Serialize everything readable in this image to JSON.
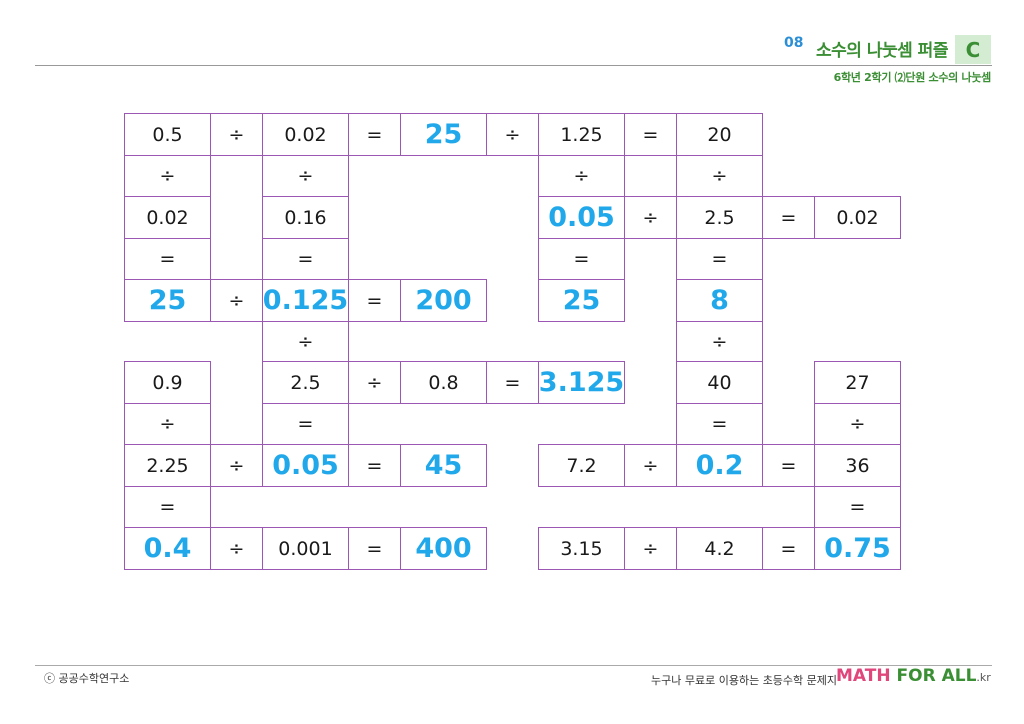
{
  "header": {
    "number": "08",
    "title": "소수의 나눗셈 퍼즐",
    "badge": "C",
    "subtitle": "6학년 2학기 ⑵단원 소수의 나눗셈"
  },
  "puzzle": {
    "rows": [
      [
        "0.5",
        "÷",
        "0.02",
        "=",
        "25*",
        "÷",
        "1.25",
        "=",
        "20",
        "",
        ""
      ],
      [
        "÷",
        "",
        "÷",
        "",
        "",
        "",
        "÷",
        "",
        "÷",
        "",
        ""
      ],
      [
        "0.02",
        "",
        "0.16",
        "",
        "",
        "",
        "0.05*",
        "÷",
        "2.5",
        "=",
        "0.02"
      ],
      [
        "=",
        "",
        "=",
        "",
        "",
        "",
        "=",
        "",
        "=",
        "",
        ""
      ],
      [
        "25*",
        "÷",
        "0.125*",
        "=",
        "200*",
        "",
        "25*",
        "",
        "8*",
        "",
        ""
      ],
      [
        "",
        "",
        "÷",
        "",
        "",
        "",
        "",
        "",
        "÷",
        "",
        ""
      ],
      [
        "0.9",
        "",
        "2.5",
        "÷",
        "0.8",
        "=",
        "3.125*",
        "",
        "40",
        "",
        "27"
      ],
      [
        "÷",
        "",
        "=",
        "",
        "",
        "",
        "",
        "",
        "=",
        "",
        "÷"
      ],
      [
        "2.25",
        "÷",
        "0.05*",
        "=",
        "45*",
        "",
        "7.2",
        "÷",
        "0.2*",
        "=",
        "36"
      ],
      [
        "=",
        "",
        "",
        "",
        "",
        "",
        "",
        "",
        "",
        "",
        "="
      ],
      [
        "0.4*",
        "÷",
        "0.001",
        "=",
        "400*",
        "",
        "3.15",
        "÷",
        "4.2",
        "=",
        "0.75*"
      ]
    ]
  },
  "footer": {
    "copyright": "ⓒ 공공수학연구소",
    "tagline": "누구나 무료로 이용하는 초등수학 문제지",
    "brand_math": "MATH",
    "brand_forall": "FOR ALL",
    "brand_kr": ".kr"
  },
  "colors": {
    "border": "#9c56b4",
    "answer": "#20a8ea",
    "title_green": "#3a8e33",
    "number_blue": "#2c8fd6",
    "brand_pink": "#e0457b"
  }
}
